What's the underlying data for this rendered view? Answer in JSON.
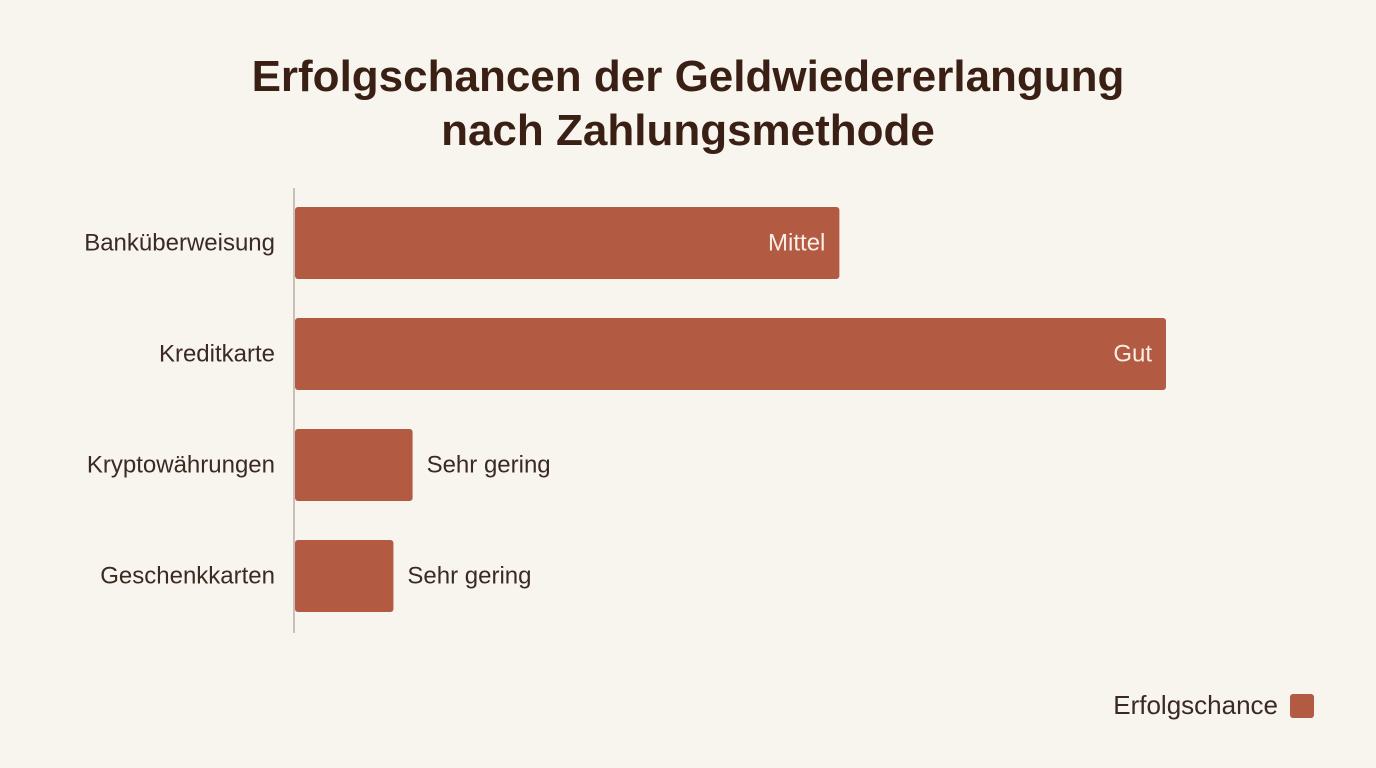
{
  "chart_data": {
    "type": "bar",
    "orientation": "horizontal",
    "title_lines": [
      "Erfolgschancen der Geldwiedererlangung",
      "nach Zahlungsmethode"
    ],
    "categories": [
      "Banküberweisung",
      "Kreditkarte",
      "Kryptowährungen",
      "Geschenkkarten"
    ],
    "series": [
      {
        "name": "Erfolgschance",
        "values": [
          62.5,
          100,
          13.5,
          11.3
        ],
        "value_labels": [
          "Mittel",
          "Gut",
          "Sehr gering",
          "Sehr gering"
        ],
        "color": "#b35a42"
      }
    ],
    "xlim": [
      0,
      100
    ],
    "grid": false,
    "legend_position": "bottom-right"
  }
}
